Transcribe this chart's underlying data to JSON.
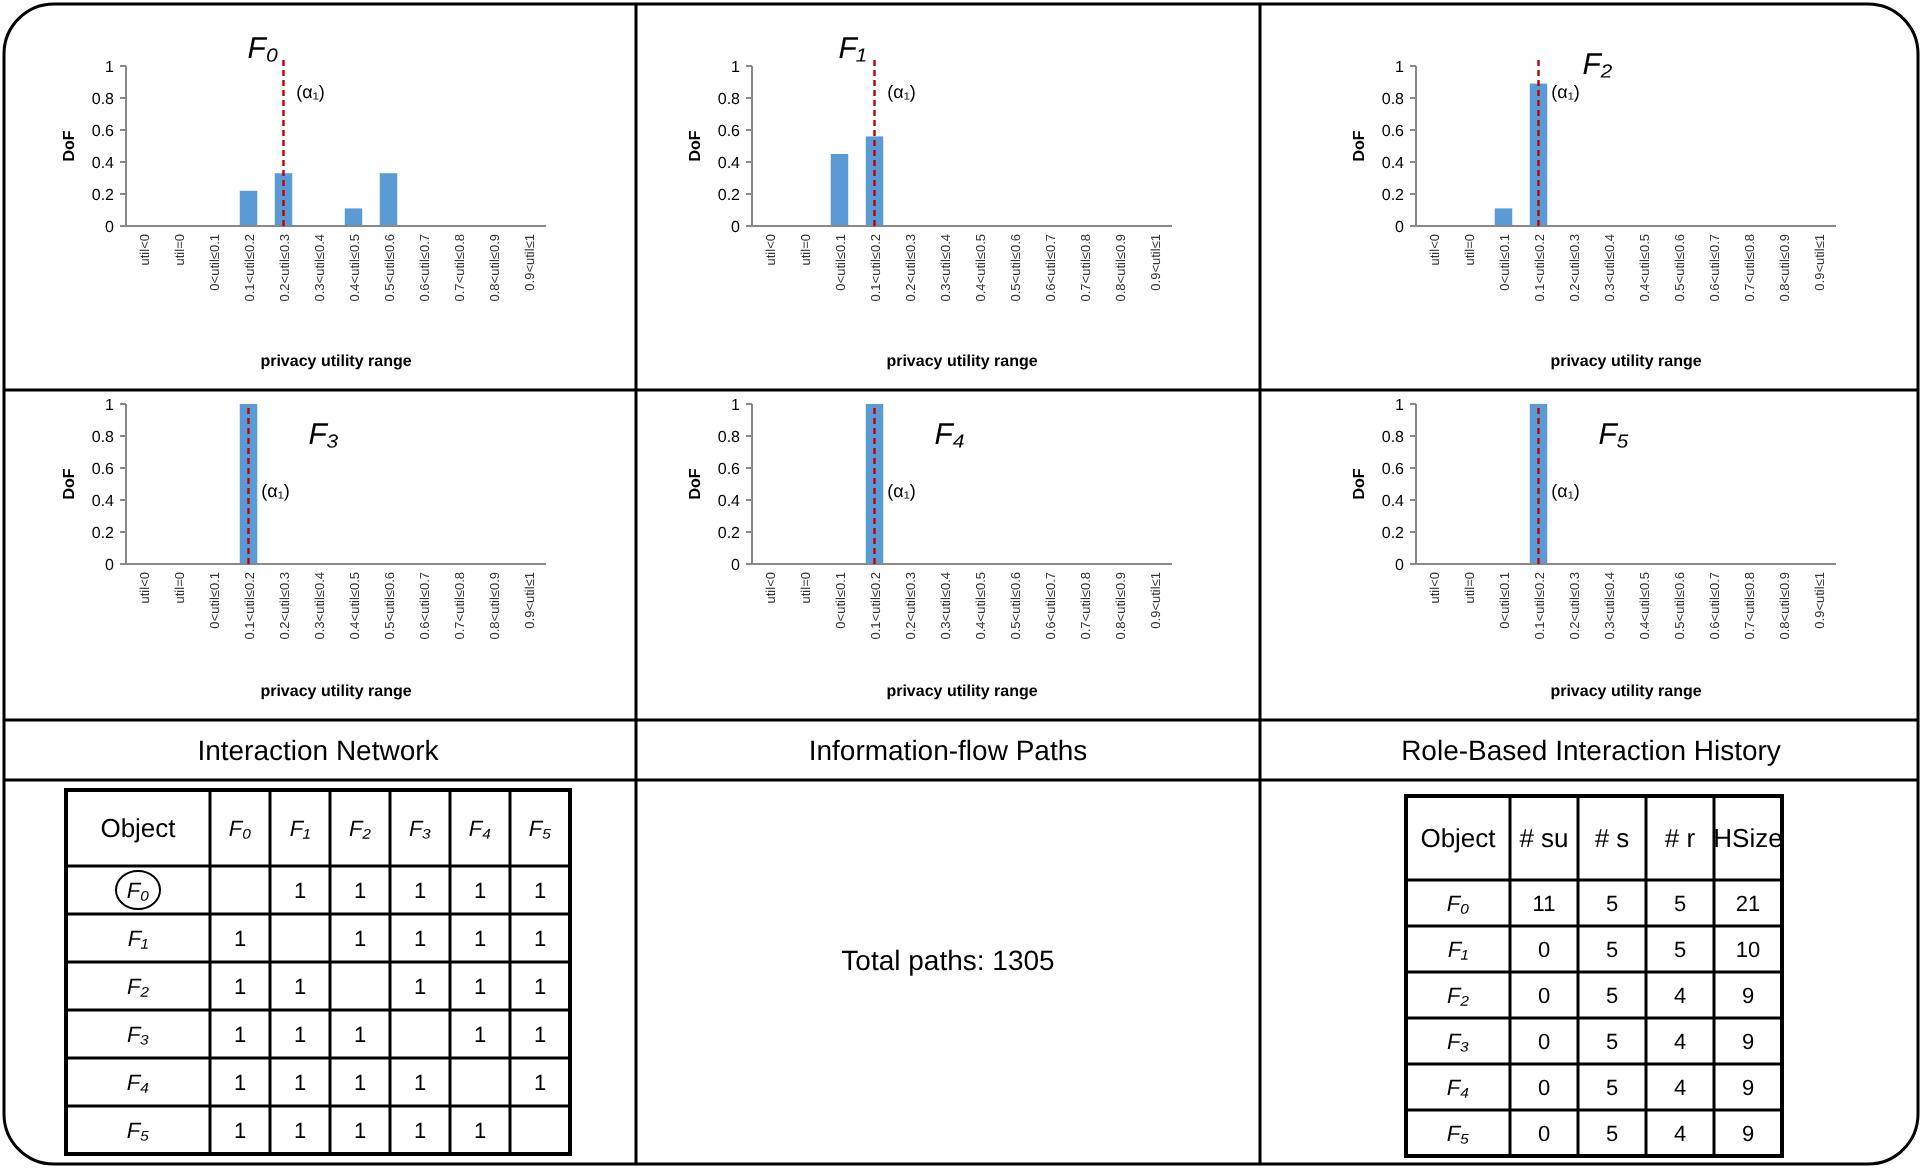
{
  "chart_data": [
    {
      "type": "bar",
      "title": "F₀",
      "xlabel": "privacy utility range",
      "ylabel": "DoF",
      "categories": [
        "util<0",
        "util=0",
        "0<util≤0.1",
        "0.1<util≤0.2",
        "0.2<util≤0.3",
        "0.3<util≤0.4",
        "0.4<util≤0.5",
        "0.5<util≤0.6",
        "0.6<util≤0.7",
        "0.7<util≤0.8",
        "0.8<util≤0.9",
        "0.9<util≤1"
      ],
      "values": [
        0,
        0,
        0,
        0.22,
        0.33,
        0,
        0.11,
        0.33,
        0,
        0,
        0,
        0
      ],
      "color": "#5b9bd5",
      "ylim": [
        0,
        1
      ],
      "yticks": [
        0,
        0.2,
        0.4,
        0.6,
        0.8,
        1
      ],
      "ref_lines": [
        {
          "axis": "x",
          "value": "0.2<util≤0.3",
          "label": "(α₁)",
          "color": "#c00000",
          "line_style": "dashed"
        }
      ]
    },
    {
      "type": "bar",
      "title": "F₁",
      "xlabel": "privacy utility range",
      "ylabel": "DoF",
      "categories": [
        "util<0",
        "util=0",
        "0<util≤0.1",
        "0.1<util≤0.2",
        "0.2<util≤0.3",
        "0.3<util≤0.4",
        "0.4<util≤0.5",
        "0.5<util≤0.6",
        "0.6<util≤0.7",
        "0.7<util≤0.8",
        "0.8<util≤0.9",
        "0.9<util≤1"
      ],
      "values": [
        0,
        0,
        0.45,
        0.56,
        0,
        0,
        0,
        0,
        0,
        0,
        0,
        0
      ],
      "color": "#5b9bd5",
      "ylim": [
        0,
        1
      ],
      "yticks": [
        0,
        0.2,
        0.4,
        0.6,
        0.8,
        1
      ],
      "ref_lines": [
        {
          "axis": "x",
          "value": "0.1<util≤0.2",
          "label": "(α₁)",
          "color": "#c00000",
          "line_style": "dashed"
        }
      ]
    },
    {
      "type": "bar",
      "title": "F₂",
      "xlabel": "privacy utility range",
      "ylabel": "DoF",
      "categories": [
        "util<0",
        "util=0",
        "0<util≤0.1",
        "0.1<util≤0.2",
        "0.2<util≤0.3",
        "0.3<util≤0.4",
        "0.4<util≤0.5",
        "0.5<util≤0.6",
        "0.6<util≤0.7",
        "0.7<util≤0.8",
        "0.8<util≤0.9",
        "0.9<util≤1"
      ],
      "values": [
        0,
        0,
        0.11,
        0.89,
        0,
        0,
        0,
        0,
        0,
        0,
        0,
        0
      ],
      "color": "#5b9bd5",
      "ylim": [
        0,
        1
      ],
      "yticks": [
        0,
        0.2,
        0.4,
        0.6,
        0.8,
        1
      ],
      "ref_lines": [
        {
          "axis": "x",
          "value": "0.1<util≤0.2",
          "label": "(α₁)",
          "color": "#c00000",
          "line_style": "dashed"
        }
      ]
    },
    {
      "type": "bar",
      "title": "F₃",
      "xlabel": "privacy utility range",
      "ylabel": "DoF",
      "categories": [
        "util<0",
        "util=0",
        "0<util≤0.1",
        "0.1<util≤0.2",
        "0.2<util≤0.3",
        "0.3<util≤0.4",
        "0.4<util≤0.5",
        "0.5<util≤0.6",
        "0.6<util≤0.7",
        "0.7<util≤0.8",
        "0.8<util≤0.9",
        "0.9<util≤1"
      ],
      "values": [
        0,
        0,
        0,
        1,
        0,
        0,
        0,
        0,
        0,
        0,
        0,
        0
      ],
      "color": "#5b9bd5",
      "ylim": [
        0,
        1
      ],
      "yticks": [
        0,
        0.2,
        0.4,
        0.6,
        0.8,
        1
      ],
      "ref_lines": [
        {
          "axis": "x",
          "value": "0.1<util≤0.2",
          "label": "(α₁)",
          "color": "#c00000",
          "line_style": "dashed"
        }
      ]
    },
    {
      "type": "bar",
      "title": "F₄",
      "xlabel": "privacy utility range",
      "ylabel": "DoF",
      "categories": [
        "util<0",
        "util=0",
        "0<util≤0.1",
        "0.1<util≤0.2",
        "0.2<util≤0.3",
        "0.3<util≤0.4",
        "0.4<util≤0.5",
        "0.5<util≤0.6",
        "0.6<util≤0.7",
        "0.7<util≤0.8",
        "0.8<util≤0.9",
        "0.9<util≤1"
      ],
      "values": [
        0,
        0,
        0,
        1,
        0,
        0,
        0,
        0,
        0,
        0,
        0,
        0
      ],
      "color": "#5b9bd5",
      "ylim": [
        0,
        1
      ],
      "yticks": [
        0,
        0.2,
        0.4,
        0.6,
        0.8,
        1
      ],
      "ref_lines": [
        {
          "axis": "x",
          "value": "0.1<util≤0.2",
          "label": "(α₁)",
          "color": "#c00000",
          "line_style": "dashed"
        }
      ]
    },
    {
      "type": "bar",
      "title": "F₅",
      "xlabel": "privacy utility range",
      "ylabel": "DoF",
      "categories": [
        "util<0",
        "util=0",
        "0<util≤0.1",
        "0.1<util≤0.2",
        "0.2<util≤0.3",
        "0.3<util≤0.4",
        "0.4<util≤0.5",
        "0.5<util≤0.6",
        "0.6<util≤0.7",
        "0.7<util≤0.8",
        "0.8<util≤0.9",
        "0.9<util≤1"
      ],
      "values": [
        0,
        0,
        0,
        1,
        0,
        0,
        0,
        0,
        0,
        0,
        0,
        0
      ],
      "color": "#5b9bd5",
      "ylim": [
        0,
        1
      ],
      "yticks": [
        0,
        0.2,
        0.4,
        0.6,
        0.8,
        1
      ],
      "ref_lines": [
        {
          "axis": "x",
          "value": "0.1<util≤0.2",
          "label": "(α₁)",
          "color": "#c00000",
          "line_style": "dashed"
        }
      ]
    },
    {
      "type": "other",
      "title": "Interaction Network",
      "ylabel": "Object",
      "categories": [
        "F₀",
        "F₁",
        "F₂",
        "F₃",
        "F₄",
        "F₅"
      ],
      "y_categories": [
        "F₀",
        "F₁",
        "F₂",
        "F₃",
        "F₄",
        "F₅"
      ],
      "cell_labels": [
        [
          null,
          "1",
          "1",
          "1",
          "1",
          "1"
        ],
        [
          "1",
          null,
          "1",
          "1",
          "1",
          "1"
        ],
        [
          "1",
          "1",
          null,
          "1",
          "1",
          "1"
        ],
        [
          "1",
          "1",
          "1",
          null,
          "1",
          "1"
        ],
        [
          "1",
          "1",
          "1",
          "1",
          null,
          "1"
        ],
        [
          "1",
          "1",
          "1",
          "1",
          "1",
          null
        ]
      ]
    },
    {
      "type": "other",
      "title": "Information-flow Paths",
      "annotations": [
        "Total paths: 1305"
      ]
    },
    {
      "type": "other",
      "title": "Role-Based Interaction History",
      "ylabel": "Object",
      "categories": [
        "# su",
        "# s",
        "# r",
        "HSize"
      ],
      "y_categories": [
        "F₀",
        "F₁",
        "F₂",
        "F₃",
        "F₄",
        "F₅"
      ],
      "cell_labels": [
        [
          "11",
          "5",
          "5",
          "21"
        ],
        [
          "0",
          "5",
          "5",
          "10"
        ],
        [
          "0",
          "5",
          "4",
          "9"
        ],
        [
          "0",
          "5",
          "4",
          "9"
        ],
        [
          "0",
          "5",
          "4",
          "9"
        ],
        [
          "0",
          "5",
          "4",
          "9"
        ]
      ]
    }
  ]
}
